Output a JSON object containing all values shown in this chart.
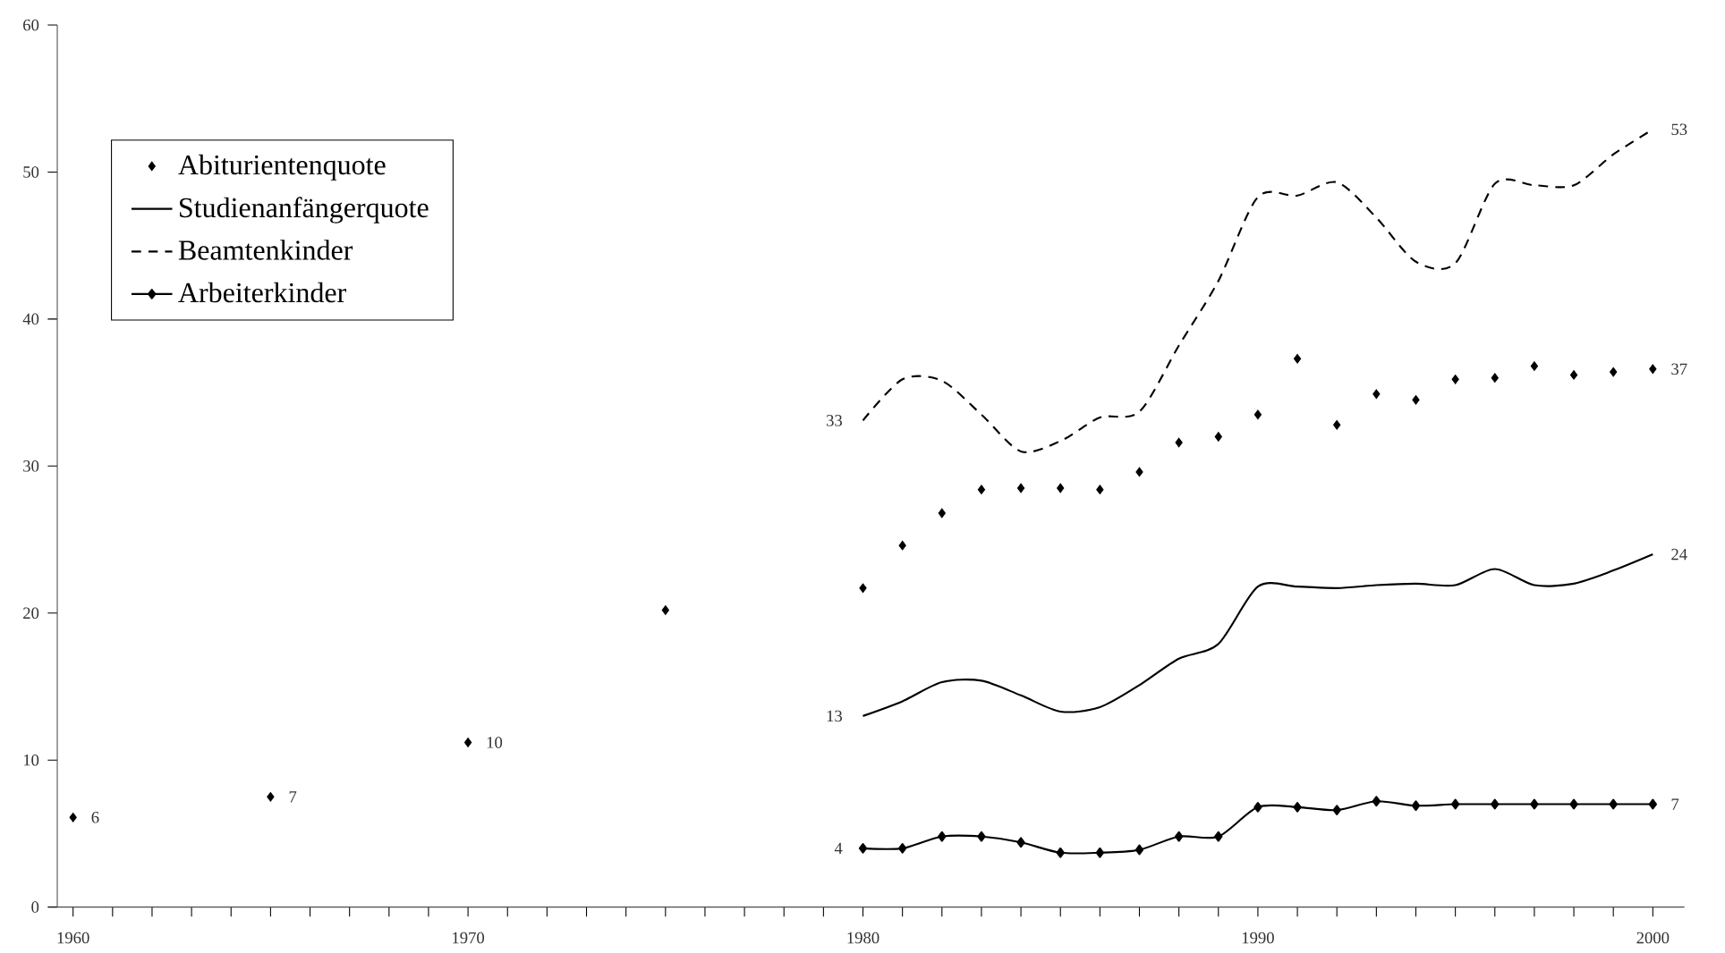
{
  "chart_data": {
    "type": "line",
    "xlim": [
      1959.6,
      2000.8
    ],
    "ylim": [
      0,
      60
    ],
    "xticks": [
      1960,
      1970,
      1980,
      1990,
      2000
    ],
    "yticks": [
      0,
      10,
      20,
      30,
      40,
      50,
      60
    ],
    "grid": false,
    "legend": "top left",
    "series": [
      {
        "name": "Abiturientenquote",
        "type": "scatter",
        "marker": "diamond",
        "color": "#000000",
        "x": [
          1960,
          1965,
          1970,
          1975,
          1980,
          1981,
          1982,
          1983,
          1984,
          1985,
          1986,
          1987,
          1988,
          1989,
          1990,
          1991,
          1992,
          1993,
          1994,
          1995,
          1996,
          1997,
          1998,
          1999,
          2000
        ],
        "values": [
          6.1,
          7.5,
          11.2,
          20.2,
          21.7,
          24.6,
          26.8,
          28.4,
          28.5,
          28.5,
          28.4,
          29.6,
          31.6,
          32.0,
          33.5,
          37.3,
          32.8,
          34.9,
          34.5,
          35.9,
          36.0,
          36.8,
          36.2,
          36.4,
          36.6
        ]
      },
      {
        "name": "Studienanfängerquote",
        "line_style": "solid",
        "marker": "none",
        "color": "#000000",
        "x": [
          1980,
          1981,
          1982,
          1983,
          1984,
          1985,
          1986,
          1987,
          1988,
          1989,
          1990,
          1991,
          1992,
          1993,
          1994,
          1995,
          1996,
          1997,
          1998,
          1999,
          2000
        ],
        "values": [
          13.0,
          14.0,
          15.3,
          15.4,
          14.4,
          13.3,
          13.6,
          15.1,
          16.9,
          17.9,
          21.8,
          21.8,
          21.7,
          21.9,
          22.0,
          21.9,
          23.0,
          21.9,
          22.0,
          22.9,
          24.0
        ]
      },
      {
        "name": "Beamtenkinder",
        "line_style": "dashed",
        "marker": "none",
        "color": "#000000",
        "x": [
          1980,
          1981,
          1982,
          1983,
          1984,
          1985,
          1986,
          1987,
          1988,
          1989,
          1990,
          1991,
          1992,
          1993,
          1994,
          1995,
          1996,
          1997,
          1998,
          1999,
          2000
        ],
        "values": [
          33.1,
          35.9,
          35.8,
          33.5,
          31.0,
          31.7,
          33.3,
          33.7,
          38.2,
          42.6,
          48.3,
          48.4,
          49.3,
          46.9,
          43.9,
          43.8,
          49.2,
          49.1,
          49.1,
          51.2,
          52.9
        ]
      },
      {
        "name": "Arbeiterkinder",
        "line_style": "solid",
        "marker": "diamond",
        "color": "#000000",
        "x": [
          1980,
          1981,
          1982,
          1983,
          1984,
          1985,
          1986,
          1987,
          1988,
          1989,
          1990,
          1991,
          1992,
          1993,
          1994,
          1995,
          1996,
          1997,
          1998,
          1999,
          2000
        ],
        "values": [
          4.0,
          4.0,
          4.8,
          4.8,
          4.4,
          3.7,
          3.7,
          3.9,
          4.8,
          4.8,
          6.8,
          6.8,
          6.6,
          7.2,
          6.9,
          7.0,
          7.0,
          7.0,
          7.0,
          7.0,
          7.0
        ]
      }
    ],
    "annotations": [
      {
        "text": "6",
        "x": 1960,
        "y": 6.1
      },
      {
        "text": "7",
        "x": 1965,
        "y": 7.5
      },
      {
        "text": "10",
        "x": 1970,
        "y": 11.2
      },
      {
        "text": "33",
        "x": 1980,
        "y": 33.1
      },
      {
        "text": "13",
        "x": 1980,
        "y": 13.0
      },
      {
        "text": "4",
        "x": 1980,
        "y": 4.0
      },
      {
        "text": "53",
        "x": 2000,
        "y": 52.9
      },
      {
        "text": "37",
        "x": 2000,
        "y": 36.6
      },
      {
        "text": "24",
        "x": 2000,
        "y": 24.0
      },
      {
        "text": "7",
        "x": 2000,
        "y": 7.0
      }
    ]
  }
}
